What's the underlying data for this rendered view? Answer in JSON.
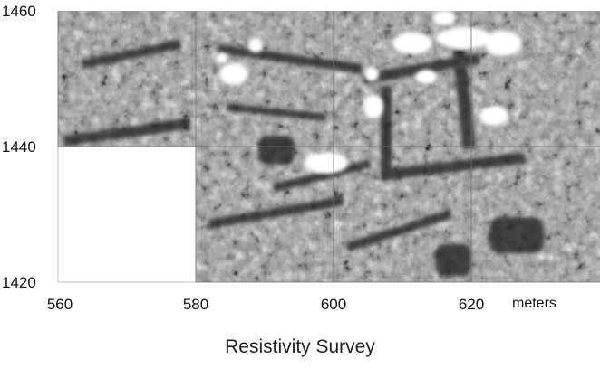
{
  "title": "Resistivity Survey",
  "axes": {
    "x_ticks": [
      "560",
      "580",
      "600",
      "620"
    ],
    "x_unit": "meters",
    "y_ticks": [
      "1460",
      "1440",
      "1420"
    ]
  },
  "survey": {
    "x_range_m": [
      560,
      640
    ],
    "y_range_m": [
      1420,
      1460
    ],
    "grid_size_m": 20,
    "unsurveyed_grid": {
      "x_m": [
        560,
        580
      ],
      "y_m": [
        1420,
        1440
      ]
    },
    "colormap": "grayscale (high resistivity = white, low = black)"
  }
}
